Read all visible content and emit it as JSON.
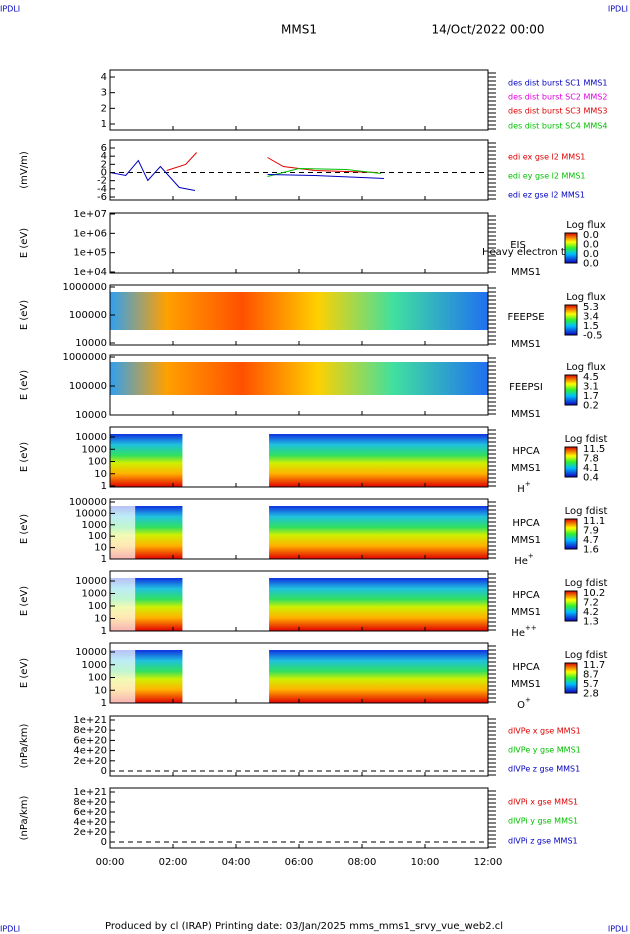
{
  "header": {
    "left": "IPDLI",
    "right": "IPDLI",
    "title": "MMS1",
    "date": "14/Oct/2022 00:00"
  },
  "footer": {
    "left": "IPDLI",
    "right": "IPDLI",
    "text": "Produced by cl (IRAP)   Printing date: 03/Jan/2025   mms_mms1_srvy_vue_web2.cl"
  },
  "x_ticks": [
    "00:00",
    "02:00",
    "04:00",
    "06:00",
    "08:00",
    "10:00",
    "12:00"
  ],
  "panels": [
    {
      "yticks": [
        "1",
        "2",
        "3",
        "4"
      ],
      "legend": [
        {
          "text": "des dist burst SC1 MMS1",
          "color": "#0000c0"
        },
        {
          "text": "des dist burst SC2 MMS2",
          "color": "#e000e0"
        },
        {
          "text": "des dist burst SC3 MMS3",
          "color": "#e00000"
        },
        {
          "text": "des dist burst SC4 MMS4",
          "color": "#00c000"
        }
      ]
    },
    {
      "ylabel": "(mV/m)",
      "yticks": [
        "-6",
        "-4",
        "-2",
        "0",
        "2",
        "4",
        "6"
      ],
      "legend": [
        {
          "text": "edi ex gse l2 MMS1",
          "color": "#e00000"
        },
        {
          "text": "edi ey gse l2 MMS1",
          "color": "#00c000"
        },
        {
          "text": "edi ez gse l2 MMS1",
          "color": "#0000c0"
        }
      ]
    },
    {
      "ylabel": "E (eV)",
      "yticks": [
        "1e+04",
        "1e+05",
        "1e+06",
        "1e+07"
      ],
      "instrument": "EIS",
      "note": "Heavy electron to",
      "name": "MMS1",
      "cbar_title": "Log flux",
      "cbar_labels": [
        "0.0",
        "0.0",
        "0.0",
        "0.0"
      ]
    },
    {
      "ylabel": "E (eV)",
      "yticks": [
        "10000",
        "100000",
        "1000000"
      ],
      "instrument": "FEEPSE",
      "name": "MMS1",
      "cbar_title": "Log flux",
      "cbar_labels": [
        "5.3",
        "3.4",
        "1.5",
        "-0.5"
      ]
    },
    {
      "ylabel": "E (eV)",
      "yticks": [
        "10000",
        "100000",
        "1000000"
      ],
      "instrument": "FEEPSI",
      "name": "MMS1",
      "cbar_title": "Log flux",
      "cbar_labels": [
        "4.5",
        "3.1",
        "1.7",
        "0.2"
      ]
    },
    {
      "ylabel": "E (eV)",
      "yticks": [
        "1",
        "10",
        "100",
        "1000",
        "10000"
      ],
      "instrument": "HPCA",
      "name": "MMS1",
      "species": {
        "base": "H",
        "sup": "+"
      },
      "cbar_title": "Log fdist",
      "cbar_labels": [
        "11.5",
        "7.8",
        "4.1",
        "0.4"
      ]
    },
    {
      "ylabel": "E (eV)",
      "yticks": [
        "1",
        "10",
        "100",
        "1000",
        "10000",
        "100000"
      ],
      "instrument": "HPCA",
      "name": "MMS1",
      "species": {
        "base": "He",
        "sup": "+"
      },
      "cbar_title": "Log fdist",
      "cbar_labels": [
        "11.1",
        "7.9",
        "4.7",
        "1.6"
      ]
    },
    {
      "ylabel": "E (eV)",
      "yticks": [
        "1",
        "10",
        "100",
        "1000",
        "10000"
      ],
      "instrument": "HPCA",
      "name": "MMS1",
      "species": {
        "base": "He",
        "sup": "++"
      },
      "cbar_title": "Log fdist",
      "cbar_labels": [
        "10.2",
        "7.2",
        "4.2",
        "1.3"
      ]
    },
    {
      "ylabel": "E (eV)",
      "yticks": [
        "1",
        "10",
        "100",
        "1000",
        "10000"
      ],
      "instrument": "HPCA",
      "name": "MMS1",
      "species": {
        "base": "O",
        "sup": "+"
      },
      "cbar_title": "Log fdist",
      "cbar_labels": [
        "11.7",
        "8.7",
        "5.7",
        "2.8"
      ]
    },
    {
      "ylabel": "(nPa/km)",
      "yticks": [
        "0",
        "2e+20",
        "4e+20",
        "6e+20",
        "8e+20",
        "1e+21"
      ],
      "legend": [
        {
          "text": "dlVPe x gse MMS1",
          "color": "#e00000"
        },
        {
          "text": "dlVPe y gse MMS1",
          "color": "#00c000"
        },
        {
          "text": "dlVPe z gse MMS1",
          "color": "#0000c0"
        }
      ]
    },
    {
      "ylabel": "(nPa/km)",
      "yticks": [
        "0",
        "2e+20",
        "4e+20",
        "6e+20",
        "8e+20",
        "1e+21"
      ],
      "legend": [
        {
          "text": "dlVPi x gse MMS1",
          "color": "#e00000"
        },
        {
          "text": "dlVPi y gse MMS1",
          "color": "#00c000"
        },
        {
          "text": "dlVPi z gse MMS1",
          "color": "#0000c0"
        }
      ]
    }
  ]
}
